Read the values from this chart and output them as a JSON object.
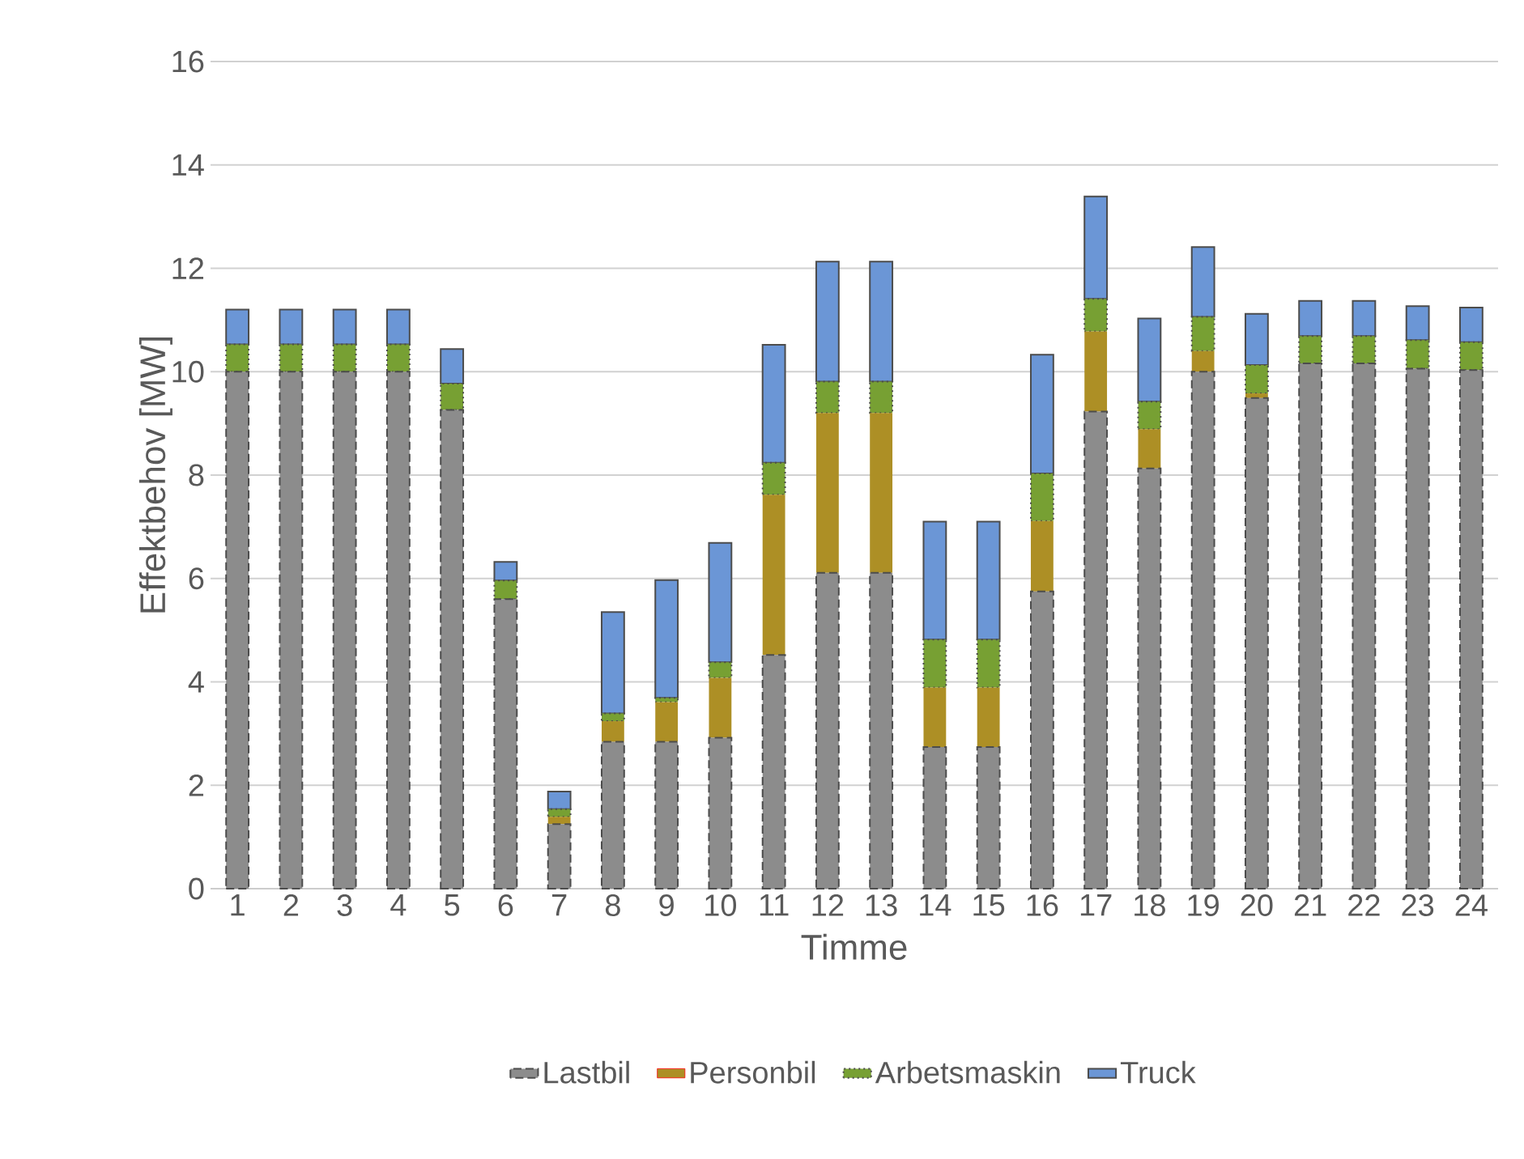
{
  "chart_data": {
    "type": "bar",
    "stacked": true,
    "xlabel": "Timme",
    "ylabel": "Effektbehov [MW]",
    "categories": [
      "1",
      "2",
      "3",
      "4",
      "5",
      "6",
      "7",
      "8",
      "9",
      "10",
      "11",
      "12",
      "13",
      "14",
      "15",
      "16",
      "17",
      "18",
      "19",
      "20",
      "21",
      "22",
      "23",
      "24"
    ],
    "series": [
      {
        "name": "Lastbil",
        "color": "#8c8c8c",
        "line_style": "dashed",
        "values": [
          10,
          10,
          10,
          10,
          9.26,
          5.6,
          1.25,
          2.84,
          2.84,
          2.92,
          4.52,
          6.11,
          6.11,
          2.74,
          2.74,
          5.75,
          9.23,
          8.13,
          10,
          9.49,
          10.16,
          10.16,
          10.06,
          10.03
        ]
      },
      {
        "name": "Personbil",
        "color": "#ad8f25",
        "values": [
          0,
          0,
          0,
          0,
          0,
          0,
          0.14,
          0.4,
          0.77,
          1.16,
          3.1,
          3.09,
          3.09,
          1.15,
          1.15,
          1.36,
          1.55,
          0.76,
          0.4,
          0.09,
          0,
          0,
          0,
          0
        ]
      },
      {
        "name": "Arbetsmaskin",
        "color": "#77a033",
        "line_style": "dotted",
        "values": [
          0.53,
          0.53,
          0.53,
          0.53,
          0.51,
          0.36,
          0.15,
          0.15,
          0.08,
          0.3,
          0.62,
          0.61,
          0.61,
          0.93,
          0.93,
          0.92,
          0.63,
          0.53,
          0.66,
          0.55,
          0.53,
          0.53,
          0.55,
          0.54
        ]
      },
      {
        "name": "Truck",
        "color": "#6b96d6",
        "line_style": "solid",
        "values": [
          0.67,
          0.67,
          0.67,
          0.67,
          0.67,
          0.36,
          0.34,
          1.96,
          2.28,
          2.31,
          2.28,
          2.32,
          2.32,
          2.28,
          2.28,
          2.3,
          1.98,
          1.61,
          1.35,
          0.99,
          0.68,
          0.68,
          0.66,
          0.67
        ]
      }
    ],
    "ylim": [
      0,
      16
    ],
    "yticks": [
      0,
      2,
      4,
      6,
      8,
      10,
      12,
      14,
      16
    ],
    "grid": "y",
    "legend": "bottom"
  }
}
